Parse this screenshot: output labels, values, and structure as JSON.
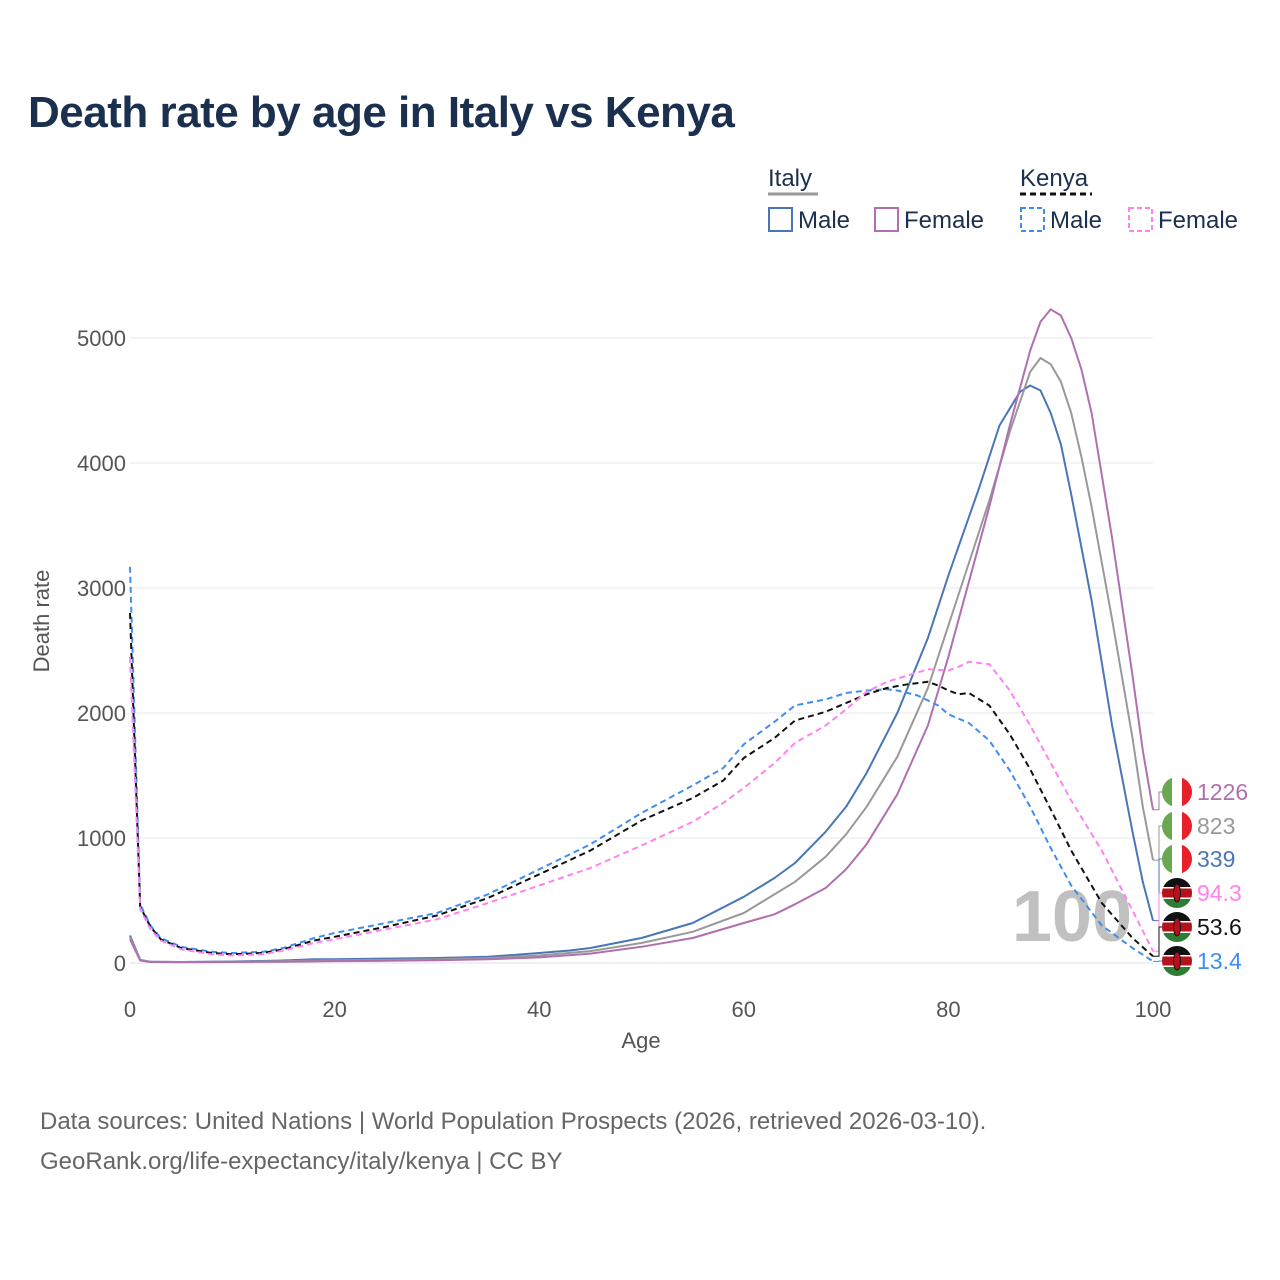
{
  "title": "Death rate by age in Italy vs Kenya",
  "footer": {
    "line1": "Data sources: United Nations | World Population Prospects (2026, retrieved 2026-03-10).",
    "line2": "GeoRank.org/life-expectancy/italy/kenya | CC BY"
  },
  "legend": {
    "groups": [
      {
        "name": "Italy",
        "line_color": "#999999",
        "dashed": false,
        "items": [
          {
            "label": "Male",
            "color": "#4a76b8"
          },
          {
            "label": "Female",
            "color": "#b070b0"
          }
        ]
      },
      {
        "name": "Kenya",
        "line_color": "#111111",
        "dashed": true,
        "items": [
          {
            "label": "Male",
            "color": "#3e8ef0"
          },
          {
            "label": "Female",
            "color": "#ff82ee"
          }
        ]
      }
    ]
  },
  "year_watermark": "100",
  "end_labels": [
    {
      "country": "Italy",
      "value": "1226",
      "color": "#b070b0"
    },
    {
      "country": "Italy",
      "value": "823",
      "color": "#999999"
    },
    {
      "country": "Italy",
      "value": "339",
      "color": "#4a76b8"
    },
    {
      "country": "Kenya",
      "value": "94.3",
      "color": "#ff82ee"
    },
    {
      "country": "Kenya",
      "value": "53.6",
      "color": "#111111"
    },
    {
      "country": "Kenya",
      "value": "13.4",
      "color": "#3e8ef0"
    }
  ],
  "flag_colors": {
    "italy": [
      "#6aa84f",
      "#ffffff",
      "#e8202a"
    ],
    "kenya": [
      "#111111",
      "#ffffff",
      "#b5121b",
      "#2e7d32"
    ]
  },
  "chart_data": {
    "type": "line",
    "title": "Death rate by age in Italy vs Kenya",
    "xlabel": "Age",
    "ylabel": "Death rate",
    "xlim": [
      0,
      100
    ],
    "ylim": [
      0,
      5400
    ],
    "xticks": [
      0,
      20,
      40,
      60,
      80,
      100
    ],
    "yticks": [
      0,
      1000,
      2000,
      3000,
      4000,
      5000
    ],
    "grid": true,
    "series": [
      {
        "name": "Italy Male",
        "color": "#4a76b8",
        "dashed": false,
        "x": [
          0,
          1,
          2,
          5,
          10,
          15,
          18,
          20,
          25,
          30,
          35,
          40,
          43,
          45,
          50,
          55,
          60,
          63,
          65,
          68,
          70,
          72,
          75,
          78,
          80,
          83,
          85,
          87,
          88,
          89,
          90,
          91,
          92,
          94,
          96,
          98,
          99,
          100
        ],
        "y": [
          220,
          25,
          10,
          8,
          12,
          20,
          30,
          30,
          35,
          40,
          50,
          80,
          100,
          120,
          200,
          320,
          530,
          680,
          800,
          1050,
          1250,
          1520,
          2000,
          2600,
          3100,
          3800,
          4300,
          4570,
          4620,
          4580,
          4400,
          4150,
          3750,
          2900,
          1900,
          1050,
          650,
          339
        ]
      },
      {
        "name": "Italy Both",
        "color": "#999999",
        "dashed": false,
        "x": [
          0,
          1,
          2,
          5,
          10,
          15,
          20,
          25,
          30,
          35,
          40,
          45,
          50,
          55,
          60,
          65,
          68,
          70,
          72,
          75,
          78,
          80,
          82,
          84,
          86,
          88,
          89,
          90,
          91,
          92,
          93,
          94,
          96,
          98,
          99,
          100
        ],
        "y": [
          205,
          22,
          10,
          8,
          10,
          15,
          22,
          25,
          30,
          40,
          60,
          95,
          160,
          250,
          400,
          650,
          850,
          1030,
          1250,
          1650,
          2200,
          2700,
          3200,
          3700,
          4250,
          4730,
          4840,
          4790,
          4650,
          4400,
          4050,
          3650,
          2750,
          1800,
          1250,
          823
        ]
      },
      {
        "name": "Italy Female",
        "color": "#b070b0",
        "dashed": false,
        "x": [
          0,
          1,
          2,
          5,
          10,
          15,
          20,
          25,
          30,
          35,
          40,
          45,
          50,
          55,
          60,
          63,
          65,
          68,
          70,
          72,
          75,
          78,
          80,
          82,
          84,
          86,
          88,
          89,
          90,
          91,
          92,
          93,
          94,
          96,
          98,
          99,
          100
        ],
        "y": [
          190,
          20,
          8,
          6,
          8,
          10,
          15,
          18,
          22,
          30,
          45,
          75,
          130,
          200,
          320,
          390,
          470,
          600,
          750,
          950,
          1350,
          1900,
          2450,
          3050,
          3650,
          4300,
          4900,
          5130,
          5230,
          5180,
          5000,
          4750,
          4400,
          3400,
          2300,
          1700,
          1226
        ]
      },
      {
        "name": "Kenya Male",
        "color": "#3e8ef0",
        "dashed": true,
        "x": [
          0,
          1,
          2,
          3,
          5,
          8,
          10,
          13,
          15,
          18,
          20,
          25,
          30,
          35,
          40,
          45,
          50,
          55,
          58,
          60,
          63,
          65,
          68,
          70,
          72,
          74,
          75,
          77,
          79,
          80,
          82,
          84,
          86,
          88,
          90,
          92,
          95,
          98,
          100
        ],
        "y": [
          3170,
          470,
          300,
          200,
          130,
          90,
          80,
          90,
          120,
          200,
          240,
          320,
          400,
          550,
          750,
          950,
          1200,
          1420,
          1560,
          1750,
          1930,
          2060,
          2110,
          2160,
          2180,
          2190,
          2180,
          2140,
          2060,
          1990,
          1920,
          1780,
          1540,
          1250,
          920,
          620,
          300,
          120,
          13.4
        ]
      },
      {
        "name": "Kenya Both",
        "color": "#111111",
        "dashed": true,
        "x": [
          0,
          1,
          2,
          3,
          5,
          8,
          10,
          13,
          15,
          18,
          20,
          25,
          30,
          35,
          40,
          45,
          50,
          55,
          58,
          60,
          63,
          65,
          68,
          70,
          72,
          74,
          76,
          78,
          79,
          80,
          81,
          82,
          84,
          86,
          88,
          90,
          92,
          95,
          98,
          100
        ],
        "y": [
          2800,
          450,
          290,
          190,
          120,
          80,
          70,
          80,
          110,
          180,
          210,
          290,
          380,
          520,
          710,
          900,
          1140,
          1320,
          1460,
          1640,
          1800,
          1940,
          2010,
          2080,
          2150,
          2200,
          2230,
          2250,
          2220,
          2180,
          2150,
          2160,
          2060,
          1830,
          1550,
          1230,
          900,
          480,
          200,
          53.6
        ]
      },
      {
        "name": "Kenya Female",
        "color": "#ff82ee",
        "dashed": true,
        "x": [
          0,
          1,
          2,
          3,
          5,
          8,
          10,
          13,
          15,
          18,
          20,
          25,
          30,
          35,
          40,
          45,
          50,
          55,
          58,
          60,
          63,
          65,
          68,
          70,
          72,
          74,
          76,
          78,
          80,
          81,
          82,
          84,
          86,
          88,
          90,
          92,
          95,
          98,
          100
        ],
        "y": [
          2450,
          430,
          270,
          180,
          110,
          70,
          60,
          70,
          100,
          160,
          190,
          270,
          350,
          480,
          620,
          760,
          940,
          1130,
          1280,
          1400,
          1600,
          1760,
          1900,
          2030,
          2170,
          2250,
          2300,
          2350,
          2340,
          2370,
          2410,
          2390,
          2180,
          1900,
          1600,
          1300,
          900,
          420,
          94.3
        ]
      }
    ]
  }
}
